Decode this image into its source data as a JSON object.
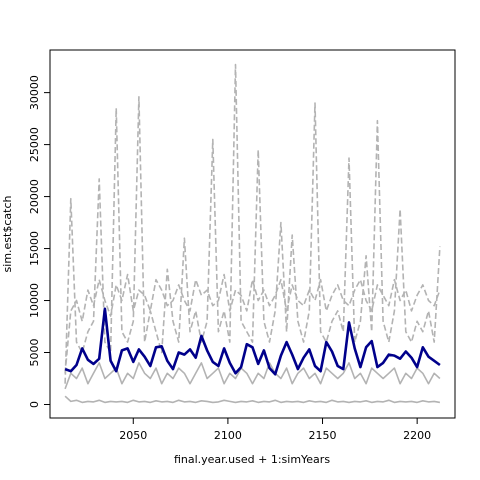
{
  "chart_data": {
    "type": "line",
    "xlabel": "final.year.used + 1:simYears",
    "ylabel": "sim.est$catch",
    "x": [
      2014,
      2017,
      2020,
      2023,
      2026,
      2029,
      2032,
      2035,
      2038,
      2041,
      2044,
      2047,
      2050,
      2053,
      2056,
      2059,
      2062,
      2065,
      2068,
      2071,
      2074,
      2077,
      2080,
      2083,
      2086,
      2089,
      2092,
      2095,
      2098,
      2101,
      2104,
      2107,
      2110,
      2113,
      2116,
      2119,
      2122,
      2125,
      2128,
      2131,
      2134,
      2137,
      2140,
      2143,
      2146,
      2149,
      2152,
      2155,
      2158,
      2161,
      2164,
      2167,
      2170,
      2173,
      2176,
      2179,
      2182,
      2185,
      2188,
      2191,
      2194,
      2197,
      2200,
      2203,
      2206,
      2209,
      2212
    ],
    "series": [
      {
        "color": "#b3b3b3",
        "line_style": "dashed",
        "values": [
          2000,
          19800,
          6000,
          5000,
          7000,
          8000,
          21700,
          6000,
          5000,
          28500,
          7000,
          6000,
          8000,
          29600,
          6000,
          9000,
          7000,
          5000,
          13000,
          8000,
          6000,
          16000,
          7000,
          9000,
          6000,
          8000,
          25500,
          7000,
          9000,
          6000,
          32700,
          8000,
          7000,
          6000,
          24500,
          8000,
          6000,
          9000,
          17500,
          7000,
          16300,
          8000,
          6000,
          9000,
          29000,
          7000,
          6000,
          8000,
          9000,
          7000,
          23700,
          6000,
          8000,
          14300,
          7000,
          27300,
          8000,
          6000,
          9000,
          18800,
          7000,
          6000,
          8000,
          7000,
          9000,
          6000,
          15200
        ]
      },
      {
        "color": "#b3b3b3",
        "line_style": "dashed",
        "values": [
          3000,
          9000,
          10000,
          8000,
          11000,
          9500,
          12000,
          10000,
          8500,
          11500,
          10000,
          12500,
          9000,
          11000,
          10500,
          9000,
          12000,
          11000,
          9500,
          10000,
          11500,
          10000,
          9000,
          12000,
          10500,
          11000,
          9500,
          10000,
          12500,
          9000,
          11000,
          10500,
          9000,
          12000,
          10000,
          11000,
          9500,
          10500,
          12000,
          9000,
          11500,
          10000,
          9500,
          11000,
          10000,
          12000,
          9000,
          10500,
          11500,
          10000,
          9500,
          11000,
          12000,
          10000,
          9000,
          11500,
          10500,
          9500,
          12000,
          10000,
          11000,
          9000,
          10500,
          11500,
          10000,
          9500,
          11000
        ]
      },
      {
        "color": "#b3b3b3",
        "line_style": "solid",
        "values": [
          1500,
          3000,
          2500,
          3500,
          2000,
          3000,
          4000,
          2500,
          3000,
          3500,
          2000,
          3000,
          2500,
          4000,
          3000,
          2500,
          3500,
          2000,
          3000,
          2500,
          3500,
          3000,
          2000,
          3000,
          4000,
          2500,
          3000,
          3500,
          2000,
          3000,
          2500,
          3500,
          3000,
          2000,
          3000,
          2500,
          4000,
          3000,
          2500,
          3500,
          2000,
          3000,
          3500,
          2500,
          3000,
          2000,
          3500,
          3000,
          2500,
          3000,
          4000,
          2500,
          3000,
          2000,
          3500,
          3000,
          2500,
          3000,
          3500,
          2000,
          3000,
          2500,
          3500,
          3000,
          2000,
          3000,
          2500
        ]
      },
      {
        "color": "#b3b3b3",
        "line_style": "solid",
        "values": [
          800,
          300,
          400,
          200,
          300,
          250,
          400,
          200,
          300,
          250,
          300,
          200,
          400,
          250,
          300,
          200,
          350,
          250,
          300,
          200,
          400,
          250,
          300,
          200,
          350,
          300,
          200,
          250,
          400,
          300,
          200,
          300,
          250,
          350,
          200,
          300,
          250,
          400,
          200,
          300,
          250,
          300,
          200,
          350,
          250,
          300,
          200,
          400,
          250,
          300,
          200,
          300,
          250,
          350,
          200,
          300,
          250,
          400,
          200,
          300,
          250,
          300,
          200,
          350,
          250,
          300,
          200
        ]
      },
      {
        "color": "#00008b",
        "line_style": "solid",
        "values": [
          3400,
          3200,
          3800,
          5400,
          4300,
          3900,
          4400,
          9200,
          4200,
          3200,
          5200,
          5400,
          4100,
          5300,
          4600,
          3700,
          5500,
          5600,
          4200,
          3400,
          5000,
          4800,
          5300,
          4500,
          6600,
          5200,
          4100,
          3700,
          5400,
          4000,
          3000,
          3600,
          5800,
          5500,
          3900,
          5200,
          3500,
          2900,
          4700,
          6000,
          4800,
          3400,
          4500,
          5300,
          3700,
          3200,
          6000,
          5100,
          3700,
          3400,
          7900,
          5400,
          3600,
          5500,
          6100,
          3600,
          4000,
          4800,
          4700,
          4400,
          5100,
          4500,
          3600,
          5500,
          4600,
          4200,
          3800
        ]
      }
    ],
    "xlim": [
      2006,
      2220
    ],
    "ylim": [
      -1300,
      34100
    ],
    "xticks": [
      2050,
      2100,
      2150,
      2200
    ],
    "yticks": [
      0,
      5000,
      10000,
      15000,
      20000,
      25000,
      30000
    ]
  }
}
